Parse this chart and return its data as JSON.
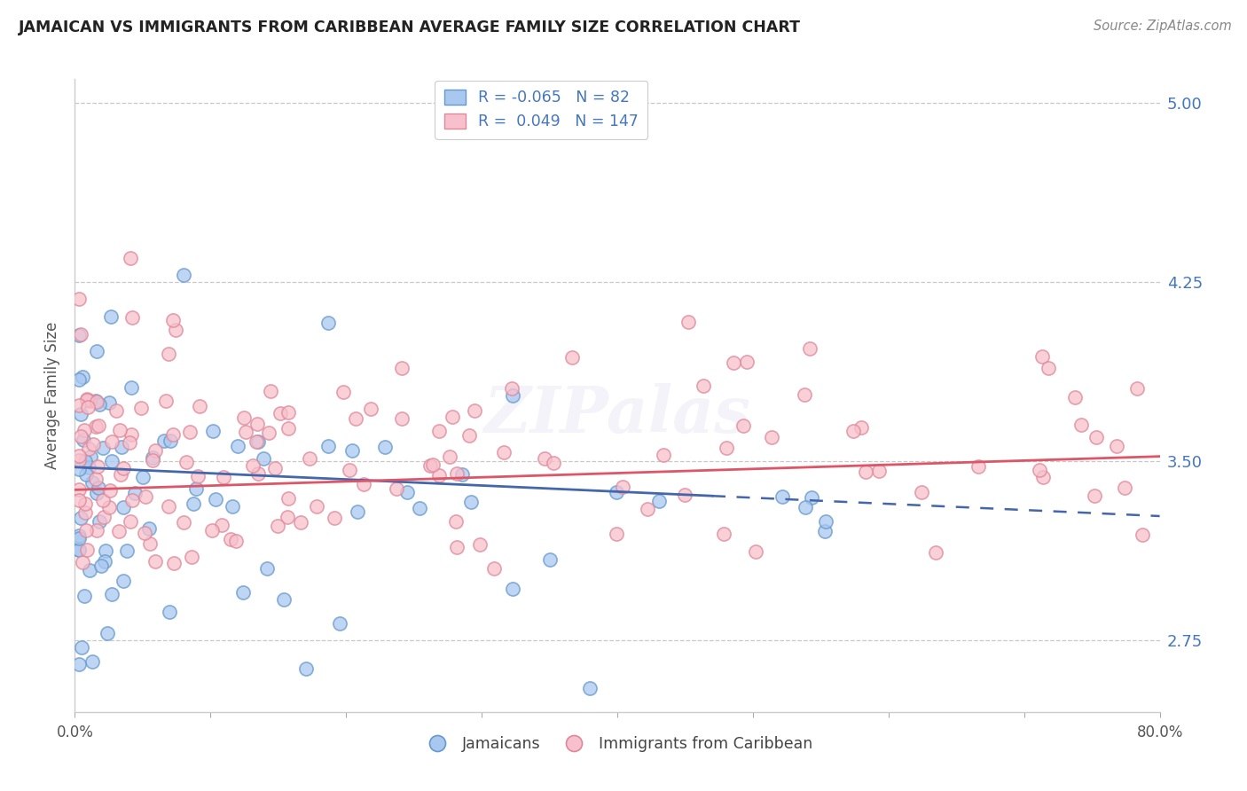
{
  "title": "JAMAICAN VS IMMIGRANTS FROM CARIBBEAN AVERAGE FAMILY SIZE CORRELATION CHART",
  "source": "Source: ZipAtlas.com",
  "ylabel": "Average Family Size",
  "x_min": 0.0,
  "x_max": 0.8,
  "y_min": 2.45,
  "y_max": 5.1,
  "y_ticks": [
    2.75,
    3.5,
    4.25,
    5.0
  ],
  "x_ticks": [
    0.0,
    0.1,
    0.2,
    0.3,
    0.4,
    0.5,
    0.6,
    0.7,
    0.8
  ],
  "blue_R": "-0.065",
  "blue_N": "82",
  "pink_R": "0.049",
  "pink_N": "147",
  "blue_color": "#A8C8F0",
  "blue_edge_color": "#6699CC",
  "pink_color": "#F8C0CC",
  "pink_edge_color": "#DD8899",
  "blue_trend_color": "#4466AA",
  "pink_trend_color": "#DD5566",
  "axis_label_color": "#4477BB",
  "background_color": "#FFFFFF",
  "grid_color": "#BBBBBB",
  "legend_text_color": "#4477BB",
  "watermark_color": "#DDDDEE"
}
